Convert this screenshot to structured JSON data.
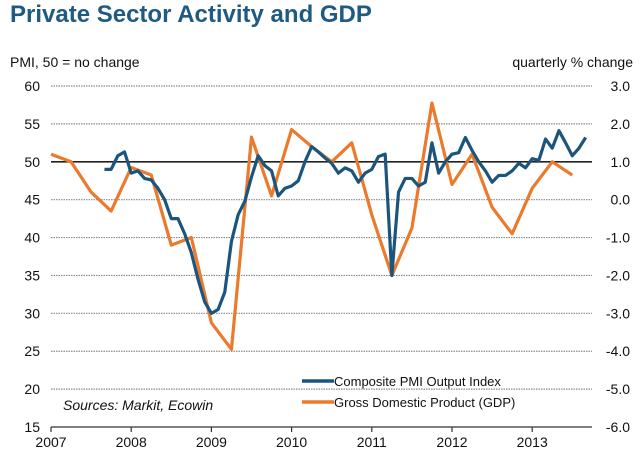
{
  "chart_data": {
    "type": "line",
    "title": "Private Sector Activity and GDP",
    "ylabel_left": "PMI, 50 = no change",
    "ylabel_right": "quarterly % change",
    "source": "Sources: Markit, Ecowin",
    "xlim": [
      2007,
      2013.75
    ],
    "ylim_left": [
      15,
      60
    ],
    "ylim_right": [
      -6.0,
      3.0
    ],
    "x_ticks": [
      "2007",
      "2008",
      "2009",
      "2010",
      "2011",
      "2012",
      "2013"
    ],
    "y_ticks_left": [
      "60",
      "55",
      "50",
      "45",
      "40",
      "35",
      "30",
      "25",
      "20",
      "15"
    ],
    "y_ticks_right": [
      "3.0",
      "2.0",
      "1.0",
      "0.0",
      "-1.0",
      "-2.0",
      "-3.0",
      "-4.0",
      "-5.0",
      "-6.0"
    ],
    "grid": true,
    "reference_line_left": 50,
    "legend_position": "bottom-center",
    "series": [
      {
        "name": "Composite PMI Output Index",
        "axis": "left",
        "color": "#1b557d",
        "frequency": "monthly",
        "start": "2007-09",
        "values": [
          49,
          49,
          50.8,
          51.3,
          48.5,
          48.8,
          47.8,
          47.6,
          46.5,
          45,
          42.5,
          42.5,
          40.5,
          38,
          34.5,
          31.5,
          30,
          30.5,
          32.8,
          39.5,
          43,
          44.8,
          48,
          50.8,
          49.5,
          48.8,
          45.5,
          46.5,
          46.8,
          47.5,
          50,
          52,
          51.3,
          50.5,
          49.8,
          48.5,
          49.2,
          48.8,
          47.3,
          48.5,
          49,
          50.7,
          51,
          35,
          46,
          47.8,
          47.8,
          46.8,
          47.3,
          52.5,
          48.5,
          50,
          51,
          51.2,
          53.2,
          51.5,
          50,
          48.8,
          47.3,
          48.2,
          48.2,
          48.8,
          49.8,
          49.2,
          50.4,
          50.2,
          53,
          51.8,
          54.1,
          52.5,
          50.8,
          51.8,
          53.2
        ]
      },
      {
        "name": "Gross Domestic Product (GDP)",
        "axis": "right",
        "color": "#eb7a2c",
        "frequency": "quarterly",
        "start": "2007-Q1",
        "values": [
          1.2,
          1.0,
          0.2,
          -0.3,
          0.85,
          0.65,
          -1.2,
          -1.0,
          -3.25,
          -3.95,
          1.65,
          0.1,
          1.85,
          1.4,
          1.0,
          1.5,
          -0.4,
          -2.0,
          -0.75,
          2.55,
          0.4,
          1.2,
          -0.2,
          -0.9,
          0.3,
          1.0,
          0.65
        ]
      }
    ]
  }
}
